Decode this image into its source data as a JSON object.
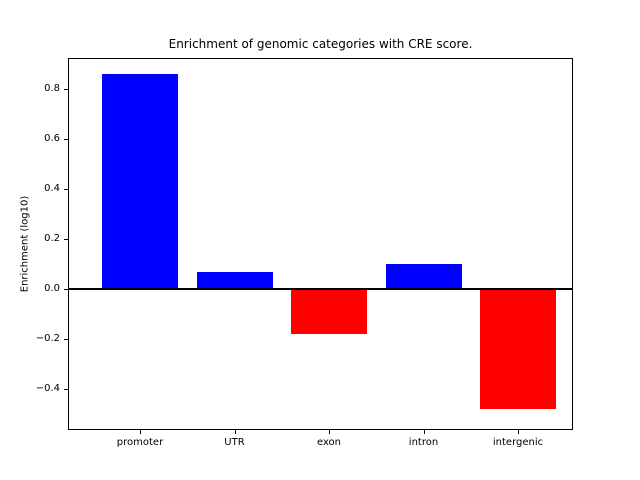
{
  "chart_data": {
    "type": "bar",
    "title": "Enrichment of genomic categories with CRE score.",
    "ylabel": "Enrichment (log10)",
    "xlabel": "",
    "categories": [
      "promoter",
      "UTR",
      "exon",
      "intron",
      "intergenic"
    ],
    "values": [
      0.86,
      0.07,
      -0.18,
      0.1,
      -0.48
    ],
    "bar_colors": [
      "#0000ff",
      "#0000ff",
      "#ff0000",
      "#0000ff",
      "#ff0000"
    ],
    "positive_color": "#0000ff",
    "negative_color": "#ff0000",
    "yticks": [
      0.8,
      0.6,
      0.4,
      0.2,
      0.0,
      -0.2,
      -0.4
    ],
    "ytick_labels": [
      "0.8",
      "0.6",
      "0.4",
      "0.2",
      "0.0",
      "−0.2",
      "−0.4"
    ],
    "ylim": [
      -0.564,
      0.924
    ],
    "grid": false,
    "zero_line": true,
    "legend_position": "none"
  }
}
